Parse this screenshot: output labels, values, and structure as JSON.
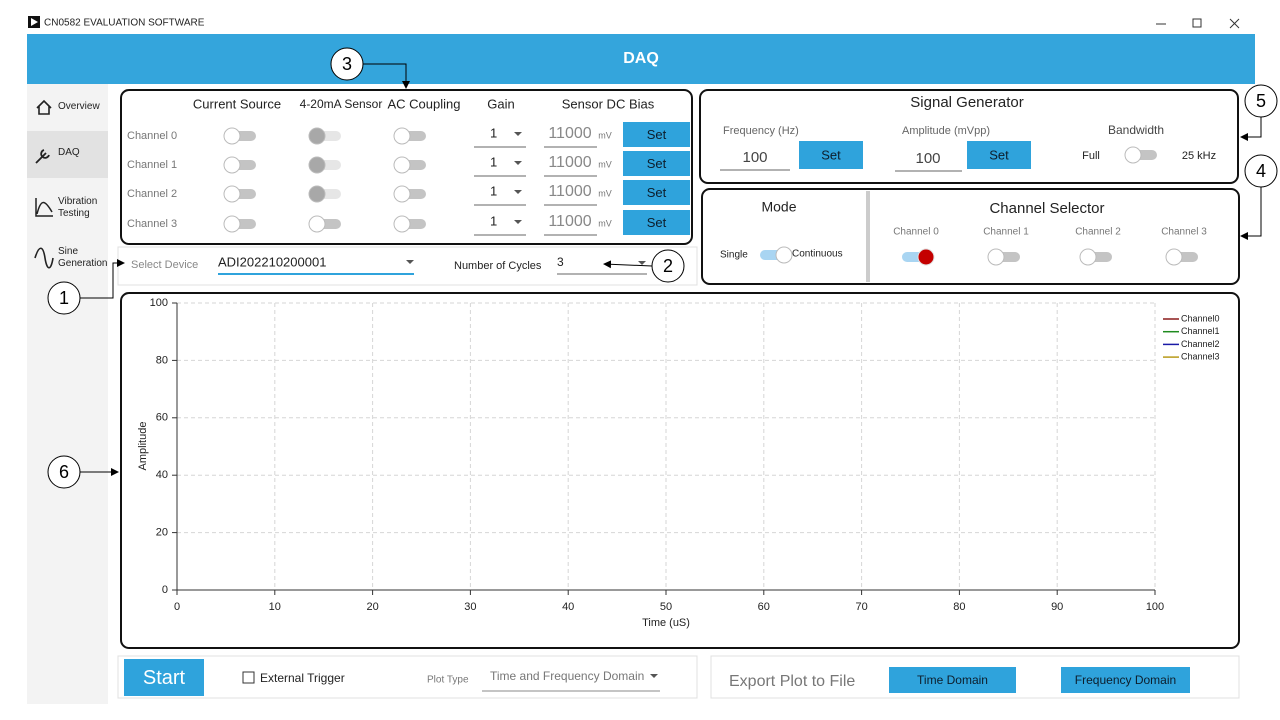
{
  "window": {
    "title": "CN0582 EVALUATION SOFTWARE"
  },
  "header": {
    "title": "DAQ"
  },
  "sidebar": {
    "items": [
      "Overview",
      "DAQ",
      "Vibration Testing",
      "Sine Generation"
    ]
  },
  "config": {
    "columns": [
      "Current Source",
      "4-20mA Sensor",
      "AC Coupling",
      "Gain",
      "Sensor DC Bias"
    ],
    "rows": [
      {
        "channel": "Channel 0",
        "gain": "1",
        "bias": "11000",
        "unit": "mV",
        "button": "Set"
      },
      {
        "channel": "Channel 1",
        "gain": "1",
        "bias": "11000",
        "unit": "mV",
        "button": "Set"
      },
      {
        "channel": "Channel 2",
        "gain": "1",
        "bias": "11000",
        "unit": "mV",
        "button": "Set"
      },
      {
        "channel": "Channel 3",
        "gain": "1",
        "bias": "11000",
        "unit": "mV",
        "button": "Set"
      }
    ]
  },
  "device": {
    "label": "Select Device",
    "value": "ADI202210200001",
    "cycles_label": "Number of Cycles",
    "cycles_value": "3"
  },
  "signal_generator": {
    "title": "Signal Generator",
    "frequency_label": "Frequency (Hz)",
    "frequency_value": "100",
    "frequency_button": "Set",
    "amplitude_label": "Amplitude (mVpp)",
    "amplitude_value": "100",
    "amplitude_button": "Set",
    "bandwidth_label": "Bandwidth",
    "bandwidth_low": "Full",
    "bandwidth_high": "25 kHz"
  },
  "mode": {
    "title": "Mode",
    "options": [
      "Single",
      "Continuous"
    ]
  },
  "channel_selector": {
    "title": "Channel Selector",
    "channels": [
      "Channel 0",
      "Channel 1",
      "Channel 2",
      "Channel 3"
    ]
  },
  "chart_data": {
    "type": "line",
    "x": [],
    "xlabel": "Time (uS)",
    "ylabel": "Amplitude",
    "series": [
      {
        "name": "Channel0",
        "color": "#8b1a1a",
        "values": []
      },
      {
        "name": "Channel1",
        "color": "#1f8b1f",
        "values": []
      },
      {
        "name": "Channel2",
        "color": "#1a1aa6",
        "values": []
      },
      {
        "name": "Channel3",
        "color": "#b89a1a",
        "values": []
      }
    ],
    "xlim": [
      0,
      100
    ],
    "ylim": [
      0,
      100
    ],
    "xticks": [
      0,
      10,
      20,
      30,
      40,
      50,
      60,
      70,
      80,
      90,
      100
    ],
    "yticks": [
      0,
      20,
      40,
      60,
      80,
      100
    ],
    "grid": true,
    "legend": "upper right"
  },
  "controls": {
    "start": "Start",
    "external_trigger": "External Trigger",
    "plot_type_label": "Plot Type",
    "plot_type_value": "Time and Frequency Domain",
    "export_label": "Export Plot to File",
    "export_buttons": [
      "Time Domain",
      "Frequency Domain"
    ]
  },
  "callouts": [
    "1",
    "2",
    "3",
    "4",
    "5",
    "6"
  ]
}
